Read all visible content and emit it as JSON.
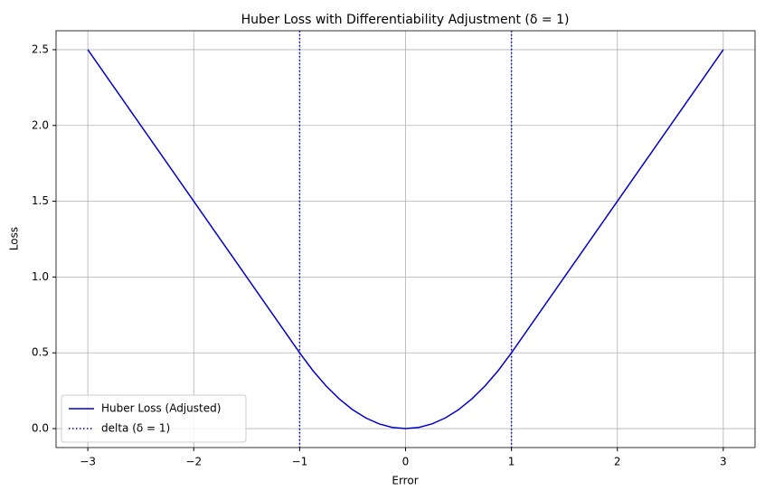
{
  "chart_data": {
    "type": "line",
    "title": "Huber Loss with Differentiability Adjustment (δ = 1)",
    "xlabel": "Error",
    "ylabel": "Loss",
    "x": [
      -3,
      -2,
      -1,
      -0.875,
      -0.75,
      -0.625,
      -0.5,
      -0.375,
      -0.25,
      -0.125,
      0,
      0.125,
      0.25,
      0.375,
      0.5,
      0.625,
      0.75,
      0.875,
      1,
      2,
      3
    ],
    "series": [
      {
        "name": "Huber Loss (Adjusted)",
        "color": "#0000cd",
        "values": [
          2.5,
          1.5,
          0.5,
          0.3828125,
          0.28125,
          0.1953125,
          0.125,
          0.0703125,
          0.03125,
          0.0078125,
          0,
          0.0078125,
          0.03125,
          0.0703125,
          0.125,
          0.1953125,
          0.28125,
          0.3828125,
          0.5,
          1.5,
          2.5
        ]
      }
    ],
    "vlines": {
      "name": "delta (δ = 1)",
      "color": "#0000cd",
      "x": [
        -1,
        1
      ]
    },
    "xlim": [
      -3.3,
      3.3
    ],
    "ylim": [
      -0.125,
      2.625
    ],
    "xticks": [
      {
        "value": -3,
        "label": "−3"
      },
      {
        "value": -2,
        "label": "−2"
      },
      {
        "value": -1,
        "label": "−1"
      },
      0,
      1,
      2,
      3
    ],
    "yticks": [
      {
        "value": 0,
        "label": "0.0"
      },
      0.5,
      {
        "value": 1,
        "label": "1.0"
      },
      1.5,
      {
        "value": 2,
        "label": "2.0"
      },
      2.5
    ],
    "grid": true,
    "legend": "lower left"
  }
}
